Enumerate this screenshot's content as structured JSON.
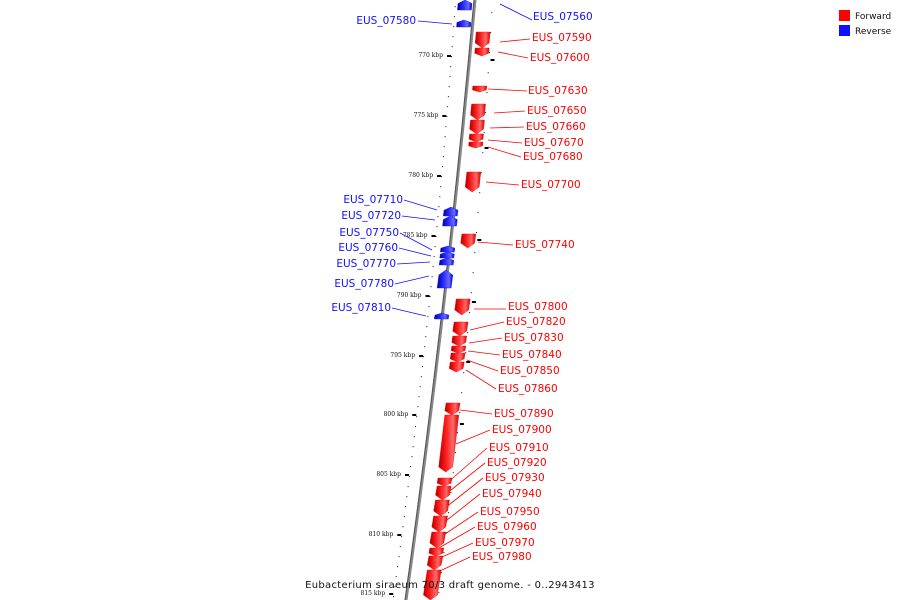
{
  "caption": "Eubacterium siraeum 70/3 draft genome. - 0..2943413",
  "legend": [
    {
      "label": "Forward",
      "color": "#ff0000"
    },
    {
      "label": "Reverse",
      "color": "#1010ff"
    }
  ],
  "ticks": [
    "770 kbp",
    "775 kbp",
    "780 kbp",
    "785 kbp",
    "790 kbp",
    "795 kbp",
    "800 kbp",
    "805 kbp",
    "810 kbp",
    "815 kbp"
  ],
  "genes": [
    {
      "id": "EUS_07560",
      "strand": "reverse"
    },
    {
      "id": "EUS_07580",
      "strand": "reverse"
    },
    {
      "id": "EUS_07590",
      "strand": "forward"
    },
    {
      "id": "EUS_07600",
      "strand": "forward"
    },
    {
      "id": "EUS_07630",
      "strand": "forward"
    },
    {
      "id": "EUS_07650",
      "strand": "forward"
    },
    {
      "id": "EUS_07660",
      "strand": "forward"
    },
    {
      "id": "EUS_07670",
      "strand": "forward"
    },
    {
      "id": "EUS_07680",
      "strand": "forward"
    },
    {
      "id": "EUS_07700",
      "strand": "forward"
    },
    {
      "id": "EUS_07710",
      "strand": "reverse"
    },
    {
      "id": "EUS_07720",
      "strand": "reverse"
    },
    {
      "id": "EUS_07740",
      "strand": "forward"
    },
    {
      "id": "EUS_07750",
      "strand": "reverse"
    },
    {
      "id": "EUS_07760",
      "strand": "reverse"
    },
    {
      "id": "EUS_07770",
      "strand": "reverse"
    },
    {
      "id": "EUS_07780",
      "strand": "reverse"
    },
    {
      "id": "EUS_07800",
      "strand": "forward"
    },
    {
      "id": "EUS_07810",
      "strand": "reverse"
    },
    {
      "id": "EUS_07820",
      "strand": "forward"
    },
    {
      "id": "EUS_07830",
      "strand": "forward"
    },
    {
      "id": "EUS_07840",
      "strand": "forward"
    },
    {
      "id": "EUS_07850",
      "strand": "forward"
    },
    {
      "id": "EUS_07860",
      "strand": "forward"
    },
    {
      "id": "EUS_07890",
      "strand": "forward"
    },
    {
      "id": "EUS_07900",
      "strand": "forward"
    },
    {
      "id": "EUS_07910",
      "strand": "forward"
    },
    {
      "id": "EUS_07920",
      "strand": "forward"
    },
    {
      "id": "EUS_07930",
      "strand": "forward"
    },
    {
      "id": "EUS_07940",
      "strand": "forward"
    },
    {
      "id": "EUS_07950",
      "strand": "forward"
    },
    {
      "id": "EUS_07960",
      "strand": "forward"
    },
    {
      "id": "EUS_07970",
      "strand": "forward"
    },
    {
      "id": "EUS_07980",
      "strand": "forward"
    }
  ]
}
